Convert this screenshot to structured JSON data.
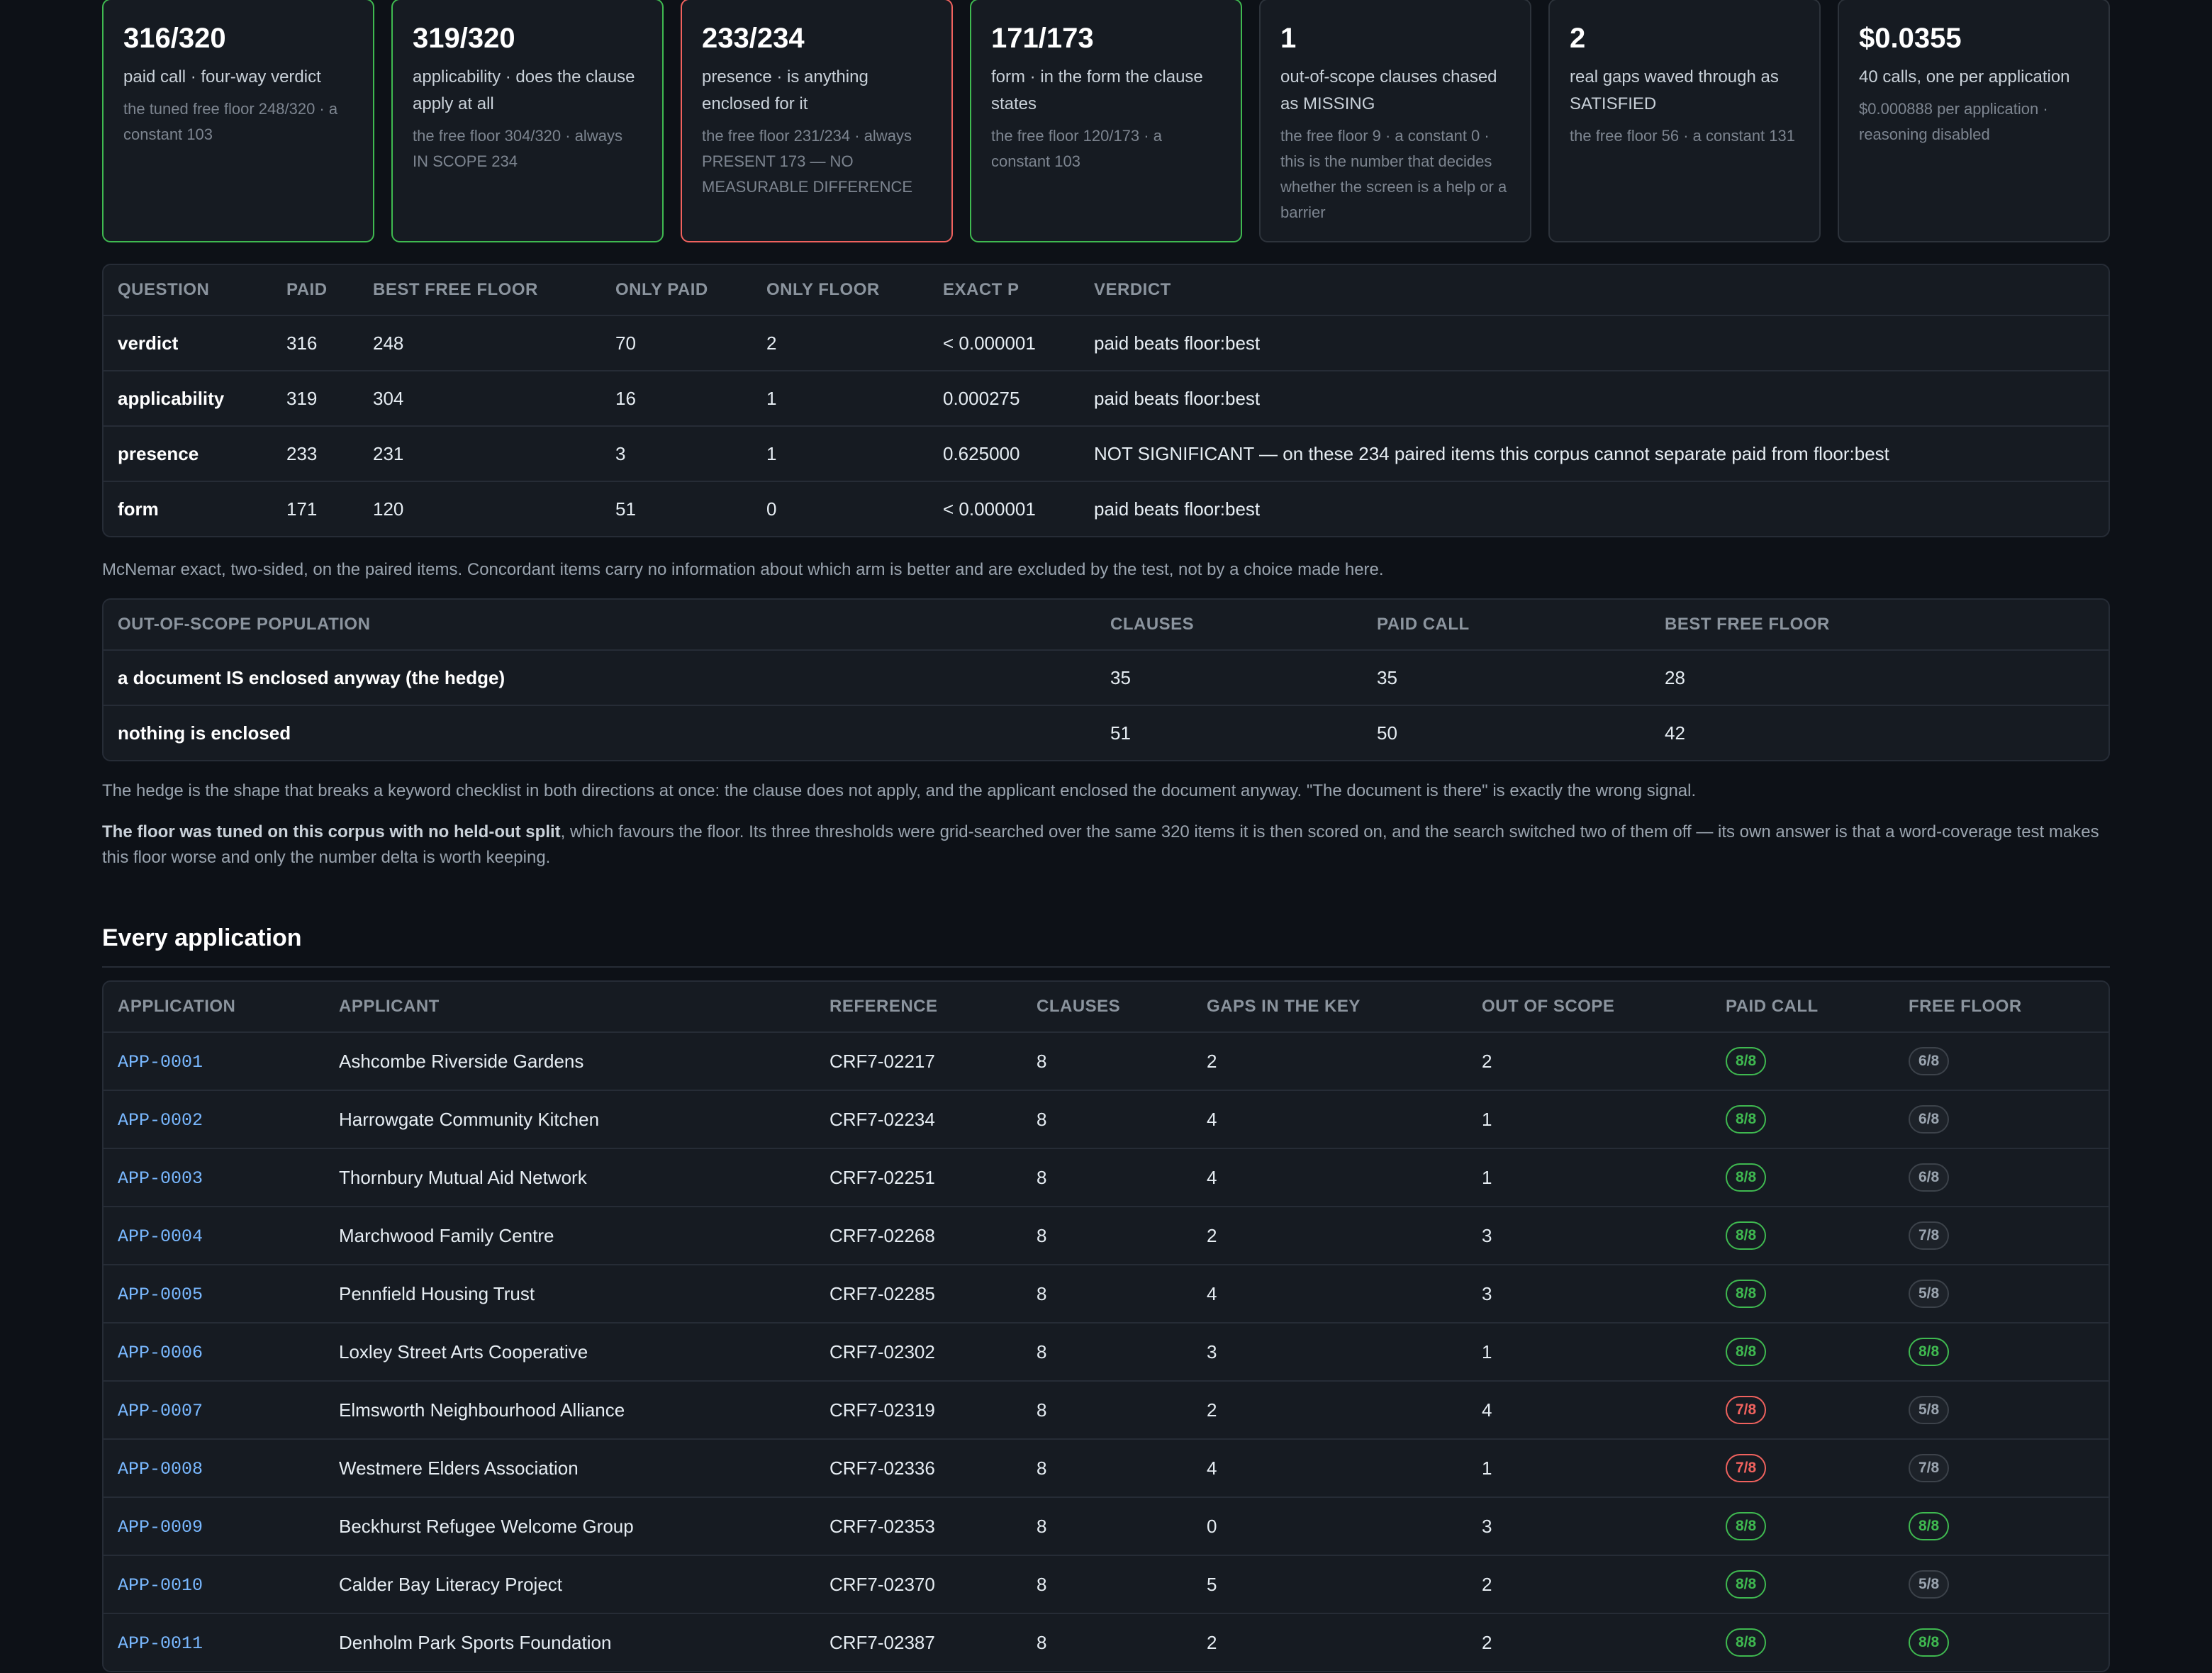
{
  "cards": [
    {
      "value": "316/320",
      "label": "paid call · four-way verdict",
      "note": "the tuned free floor 248/320 · a constant 103",
      "tone": "green"
    },
    {
      "value": "319/320",
      "label": "applicability · does the clause apply at all",
      "note": "the free floor 304/320 · always IN SCOPE 234",
      "tone": "green"
    },
    {
      "value": "233/234",
      "label": "presence · is anything enclosed for it",
      "note": "the free floor 231/234 · always PRESENT 173 — NO MEASURABLE DIFFERENCE",
      "tone": "red"
    },
    {
      "value": "171/173",
      "label": "form · in the form the clause states",
      "note": "the free floor 120/173 · a constant 103",
      "tone": "green"
    },
    {
      "value": "1",
      "label": "out-of-scope clauses chased as MISSING",
      "note": "the free floor 9 · a constant 0 · this is the number that decides whether the screen is a help or a barrier",
      "tone": "plain"
    },
    {
      "value": "2",
      "label": "real gaps waved through as SATISFIED",
      "note": "the free floor 56 · a constant 131",
      "tone": "plain"
    },
    {
      "value": "$0.0355",
      "label": "40 calls, one per application",
      "note": "$0.000888 per application · reasoning disabled",
      "tone": "plain"
    }
  ],
  "questions_table": {
    "headers": [
      "QUESTION",
      "PAID",
      "BEST FREE FLOOR",
      "ONLY PAID",
      "ONLY FLOOR",
      "EXACT P",
      "VERDICT"
    ],
    "rows": [
      [
        "verdict",
        "316",
        "248",
        "70",
        "2",
        "< 0.000001",
        "paid beats floor:best"
      ],
      [
        "applicability",
        "319",
        "304",
        "16",
        "1",
        "0.000275",
        "paid beats floor:best"
      ],
      [
        "presence",
        "233",
        "231",
        "3",
        "1",
        "0.625000",
        "NOT SIGNIFICANT — on these 234 paired items this corpus cannot separate paid from floor:best"
      ],
      [
        "form",
        "171",
        "120",
        "51",
        "0",
        "< 0.000001",
        "paid beats floor:best"
      ]
    ]
  },
  "mcnemar_note": "McNemar exact, two-sided, on the paired items. Concordant items carry no information about which arm is better and are excluded by the test, not by a choice made here.",
  "scope_table": {
    "headers": [
      "OUT-OF-SCOPE POPULATION",
      "CLAUSES",
      "PAID CALL",
      "BEST FREE FLOOR"
    ],
    "rows": [
      [
        "a document IS enclosed anyway (the hedge)",
        "35",
        "35",
        "28"
      ],
      [
        "nothing is enclosed",
        "51",
        "50",
        "42"
      ]
    ]
  },
  "hedge_note": "The hedge is the shape that breaks a keyword checklist in both directions at once: the clause does not apply, and the applicant enclosed the document anyway. \"The document is there\" is exactly the wrong signal.",
  "floor_note": {
    "bold": "The floor was tuned on this corpus with no held-out split",
    "rest": ", which favours the floor. Its three thresholds were grid-searched over the same 320 items it is then scored on, and the search switched two of them off — its own answer is that a word-coverage test makes this floor worse and only the number delta is worth keeping."
  },
  "apps_title": "Every application",
  "apps_table": {
    "headers": [
      "APPLICATION",
      "APPLICANT",
      "REFERENCE",
      "CLAUSES",
      "GAPS IN THE KEY",
      "OUT OF SCOPE",
      "PAID CALL",
      "FREE FLOOR"
    ],
    "rows": [
      {
        "id": "APP-0001",
        "applicant": "Ashcombe Riverside Gardens",
        "ref": "CRF7-02217",
        "clauses": "8",
        "gaps": "2",
        "oos": "2",
        "paid": "8/8",
        "paid_tone": "good",
        "floor": "6/8",
        "floor_tone": "neutral"
      },
      {
        "id": "APP-0002",
        "applicant": "Harrowgate Community Kitchen",
        "ref": "CRF7-02234",
        "clauses": "8",
        "gaps": "4",
        "oos": "1",
        "paid": "8/8",
        "paid_tone": "good",
        "floor": "6/8",
        "floor_tone": "neutral"
      },
      {
        "id": "APP-0003",
        "applicant": "Thornbury Mutual Aid Network",
        "ref": "CRF7-02251",
        "clauses": "8",
        "gaps": "4",
        "oos": "1",
        "paid": "8/8",
        "paid_tone": "good",
        "floor": "6/8",
        "floor_tone": "neutral"
      },
      {
        "id": "APP-0004",
        "applicant": "Marchwood Family Centre",
        "ref": "CRF7-02268",
        "clauses": "8",
        "gaps": "2",
        "oos": "3",
        "paid": "8/8",
        "paid_tone": "good",
        "floor": "7/8",
        "floor_tone": "neutral"
      },
      {
        "id": "APP-0005",
        "applicant": "Pennfield Housing Trust",
        "ref": "CRF7-02285",
        "clauses": "8",
        "gaps": "4",
        "oos": "3",
        "paid": "8/8",
        "paid_tone": "good",
        "floor": "5/8",
        "floor_tone": "neutral"
      },
      {
        "id": "APP-0006",
        "applicant": "Loxley Street Arts Cooperative",
        "ref": "CRF7-02302",
        "clauses": "8",
        "gaps": "3",
        "oos": "1",
        "paid": "8/8",
        "paid_tone": "good",
        "floor": "8/8",
        "floor_tone": "good"
      },
      {
        "id": "APP-0007",
        "applicant": "Elmsworth Neighbourhood Alliance",
        "ref": "CRF7-02319",
        "clauses": "8",
        "gaps": "2",
        "oos": "4",
        "paid": "7/8",
        "paid_tone": "bad",
        "floor": "5/8",
        "floor_tone": "neutral"
      },
      {
        "id": "APP-0008",
        "applicant": "Westmere Elders Association",
        "ref": "CRF7-02336",
        "clauses": "8",
        "gaps": "4",
        "oos": "1",
        "paid": "7/8",
        "paid_tone": "bad",
        "floor": "7/8",
        "floor_tone": "neutral"
      },
      {
        "id": "APP-0009",
        "applicant": "Beckhurst Refugee Welcome Group",
        "ref": "CRF7-02353",
        "clauses": "8",
        "gaps": "0",
        "oos": "3",
        "paid": "8/8",
        "paid_tone": "good",
        "floor": "8/8",
        "floor_tone": "good"
      },
      {
        "id": "APP-0010",
        "applicant": "Calder Bay Literacy Project",
        "ref": "CRF7-02370",
        "clauses": "8",
        "gaps": "5",
        "oos": "2",
        "paid": "8/8",
        "paid_tone": "good",
        "floor": "5/8",
        "floor_tone": "neutral"
      },
      {
        "id": "APP-0011",
        "applicant": "Denholm Park Sports Foundation",
        "ref": "CRF7-02387",
        "clauses": "8",
        "gaps": "2",
        "oos": "2",
        "paid": "8/8",
        "paid_tone": "good",
        "floor": "8/8",
        "floor_tone": "good"
      }
    ]
  },
  "colors": {
    "background": "#0d1117",
    "panel": "#161b22",
    "good": "#3fb950",
    "bad": "#f0625e",
    "link": "#79b8ff"
  }
}
